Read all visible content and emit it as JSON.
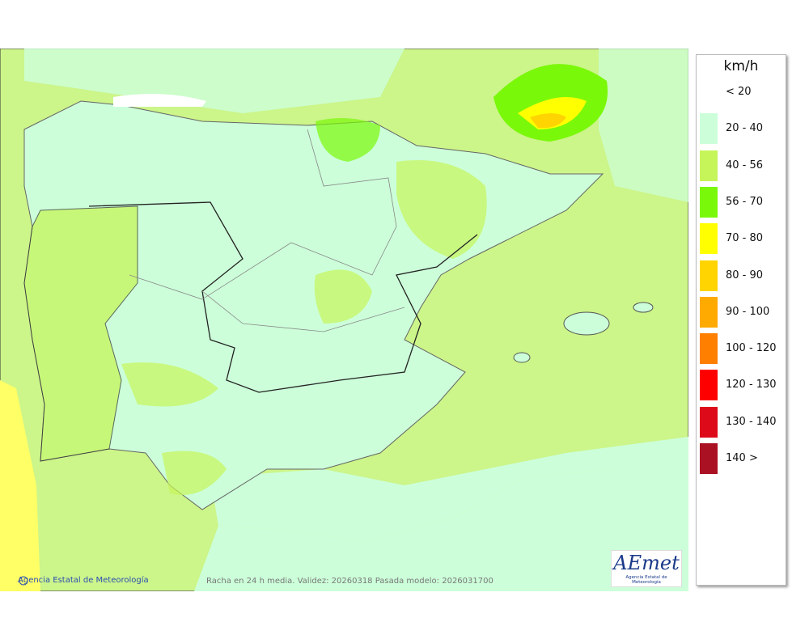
{
  "legend": {
    "title": "km/h",
    "items": [
      {
        "label": "< 20",
        "color": "#ffffff"
      },
      {
        "label": "20 - 40",
        "color": "#ccffd9"
      },
      {
        "label": "40 - 56",
        "color": "#c6f55a"
      },
      {
        "label": "56 - 70",
        "color": "#7af80a"
      },
      {
        "label": "70 - 80",
        "color": "#ffff00"
      },
      {
        "label": "80 - 90",
        "color": "#ffd400"
      },
      {
        "label": "90 - 100",
        "color": "#ffaa00"
      },
      {
        "label": "100 - 120",
        "color": "#ff8000"
      },
      {
        "label": "120 - 130",
        "color": "#ff0000"
      },
      {
        "label": "130 - 140",
        "color": "#dd0a1a"
      },
      {
        "label": "140 >",
        "color": "#aa1122"
      }
    ]
  },
  "footer": {
    "credit": "Agencia Estatal de Meteorología",
    "info": "Racha en 24 h media. Validez: 20260318 Pasada modelo: 2026031700"
  },
  "logo": {
    "name": "AEmet",
    "subtitle": "Agencia Estatal de Meteorología"
  }
}
